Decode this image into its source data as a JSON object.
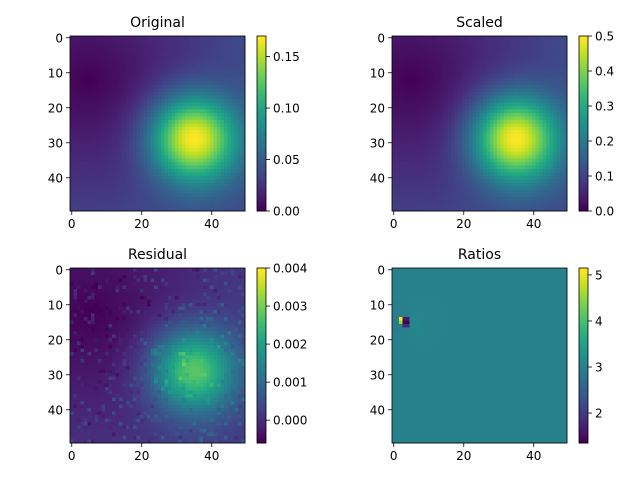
{
  "chart_data": [
    {
      "type": "heatmap",
      "title": "Original",
      "field": "original",
      "shape": [
        50,
        50
      ],
      "xlim": [
        0,
        49
      ],
      "ylim": [
        0,
        49
      ],
      "x_ticks": [
        0,
        20,
        40
      ],
      "y_ticks": [
        0,
        10,
        20,
        30,
        40
      ],
      "colormap": "viridis",
      "vmin": 0.0,
      "vmax": 0.17,
      "colorbar_ticks": [
        "0.00",
        "0.05",
        "0.10",
        "0.15"
      ],
      "colorbar_tick_values": [
        0.0,
        0.05,
        0.1,
        0.15
      ],
      "features": [
        {
          "kind": "peak",
          "x": 35,
          "y": 29,
          "value": 0.17
        },
        {
          "kind": "minimum",
          "x": 5,
          "y": 12,
          "value": 0.0
        }
      ]
    },
    {
      "type": "heatmap",
      "title": "Scaled",
      "field": "scaled",
      "shape": [
        50,
        50
      ],
      "xlim": [
        0,
        49
      ],
      "ylim": [
        0,
        49
      ],
      "x_ticks": [
        0,
        20,
        40
      ],
      "y_ticks": [
        0,
        10,
        20,
        30,
        40
      ],
      "colormap": "viridis",
      "vmin": 0.0,
      "vmax": 0.5,
      "colorbar_ticks": [
        "0.0",
        "0.1",
        "0.2",
        "0.3",
        "0.4",
        "0.5"
      ],
      "colorbar_tick_values": [
        0.0,
        0.1,
        0.2,
        0.3,
        0.4,
        0.5
      ],
      "features": [
        {
          "kind": "peak",
          "x": 35,
          "y": 29,
          "value": 0.5
        },
        {
          "kind": "minimum",
          "x": 5,
          "y": 12,
          "value": 0.0
        }
      ]
    },
    {
      "type": "heatmap",
      "title": "Residual",
      "field": "residual",
      "shape": [
        50,
        50
      ],
      "xlim": [
        0,
        49
      ],
      "ylim": [
        0,
        49
      ],
      "x_ticks": [
        0,
        20,
        40
      ],
      "y_ticks": [
        0,
        10,
        20,
        30,
        40
      ],
      "colormap": "viridis",
      "vmin": -0.0006,
      "vmax": 0.004,
      "colorbar_ticks": [
        "0.000",
        "0.001",
        "0.002",
        "0.003",
        "0.004"
      ],
      "colorbar_tick_values": [
        0.0,
        0.001,
        0.002,
        0.003,
        0.004
      ],
      "features": [
        {
          "kind": "peak",
          "x": 37,
          "y": 29,
          "value": 0.004
        },
        {
          "kind": "minimum",
          "x": 2,
          "y": 47,
          "value": -0.0006
        }
      ]
    },
    {
      "type": "heatmap",
      "title": "Ratios",
      "field": "ratios",
      "shape": [
        50,
        50
      ],
      "xlim": [
        0,
        49
      ],
      "ylim": [
        0,
        49
      ],
      "x_ticks": [
        0,
        20,
        40
      ],
      "y_ticks": [
        0,
        10,
        20,
        30,
        40
      ],
      "colormap": "viridis",
      "vmin": 1.35,
      "vmax": 5.15,
      "colorbar_ticks": [
        "2",
        "3",
        "4",
        "5"
      ],
      "colorbar_tick_values": [
        2,
        3,
        4,
        5
      ],
      "features": [
        {
          "kind": "background",
          "value": 3.0
        },
        {
          "kind": "maximum",
          "x": 2,
          "y": 14,
          "value": 5.15
        },
        {
          "kind": "minimum",
          "x": 4,
          "y": 15,
          "value": 1.35
        }
      ]
    }
  ]
}
